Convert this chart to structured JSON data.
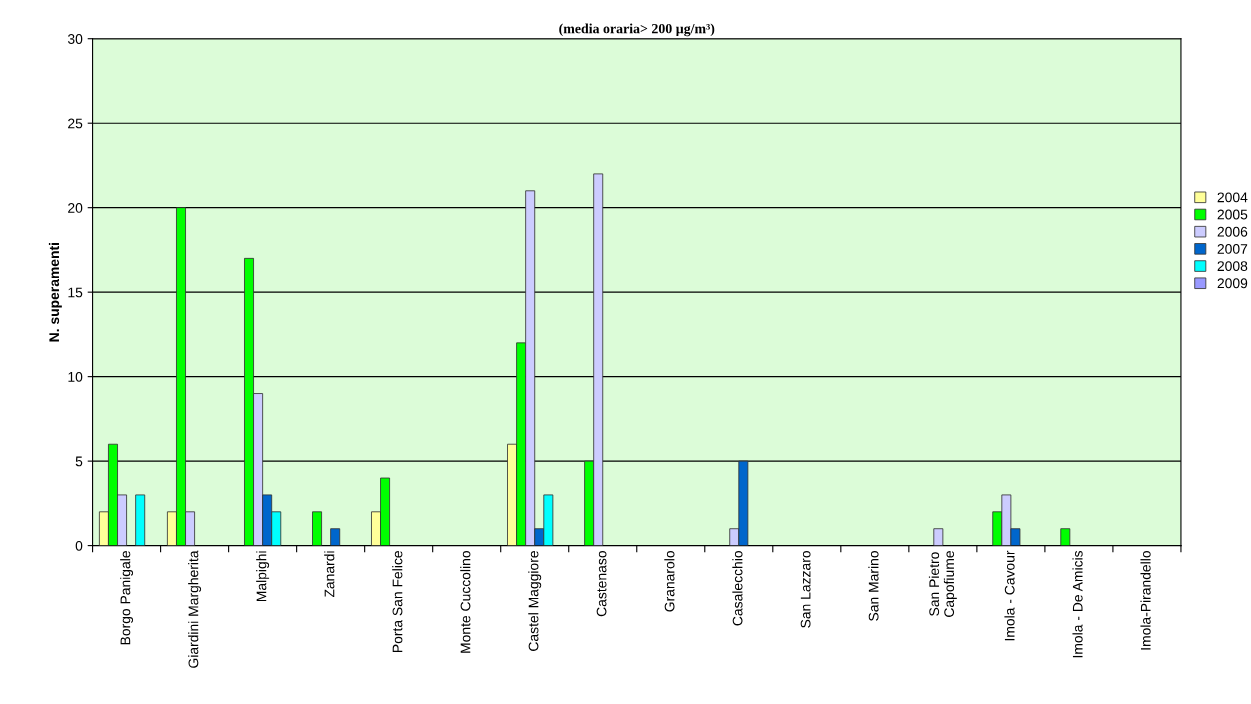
{
  "chart_data": {
    "type": "bar",
    "title": "(media oraria> 200 µg/m³)",
    "ylabel": "N. superamenti",
    "categories": [
      "Borgo Panigale",
      "Giardini Margherita",
      "Malpighi",
      "Zanardi",
      "Porta San Felice",
      "Monte Cuccolino",
      "Castel Maggiore",
      "Castenaso",
      "Granarolo",
      "Casalecchio",
      "San Lazzaro",
      "San Marino",
      "San Pietro\nCapofiume",
      "Imola - Cavour",
      "Imola - De Amicis",
      "Imola-Pirandello"
    ],
    "series": [
      {
        "name": "2004",
        "color": "#ffff99",
        "values": [
          2,
          2,
          0,
          0,
          2,
          0,
          6,
          0,
          0,
          0,
          0,
          0,
          0,
          0,
          0,
          0
        ]
      },
      {
        "name": "2005",
        "color": "#00ff00",
        "values": [
          6,
          20,
          17,
          2,
          4,
          0,
          12,
          5,
          0,
          0,
          0,
          0,
          0,
          2,
          1,
          0
        ]
      },
      {
        "name": "2006",
        "color": "#ccccff",
        "values": [
          3,
          2,
          9,
          0,
          0,
          0,
          21,
          22,
          0,
          1,
          0,
          0,
          1,
          3,
          0,
          0
        ]
      },
      {
        "name": "2007",
        "color": "#0066cc",
        "values": [
          0,
          0,
          3,
          1,
          0,
          0,
          1,
          0,
          0,
          5,
          0,
          0,
          0,
          1,
          0,
          0
        ]
      },
      {
        "name": "2008",
        "color": "#00ffff",
        "values": [
          3,
          0,
          2,
          0,
          0,
          0,
          3,
          0,
          0,
          0,
          0,
          0,
          0,
          0,
          0,
          0
        ]
      },
      {
        "name": "2009",
        "color": "#9999ff",
        "values": [
          0,
          0,
          0,
          0,
          0,
          0,
          0,
          0,
          0,
          0,
          0,
          0,
          0,
          0,
          0,
          0
        ]
      }
    ],
    "ylim": [
      0,
      30
    ],
    "yticks": [
      0,
      5,
      10,
      15,
      20,
      25,
      30
    ],
    "grid": "y",
    "legend": "right"
  }
}
